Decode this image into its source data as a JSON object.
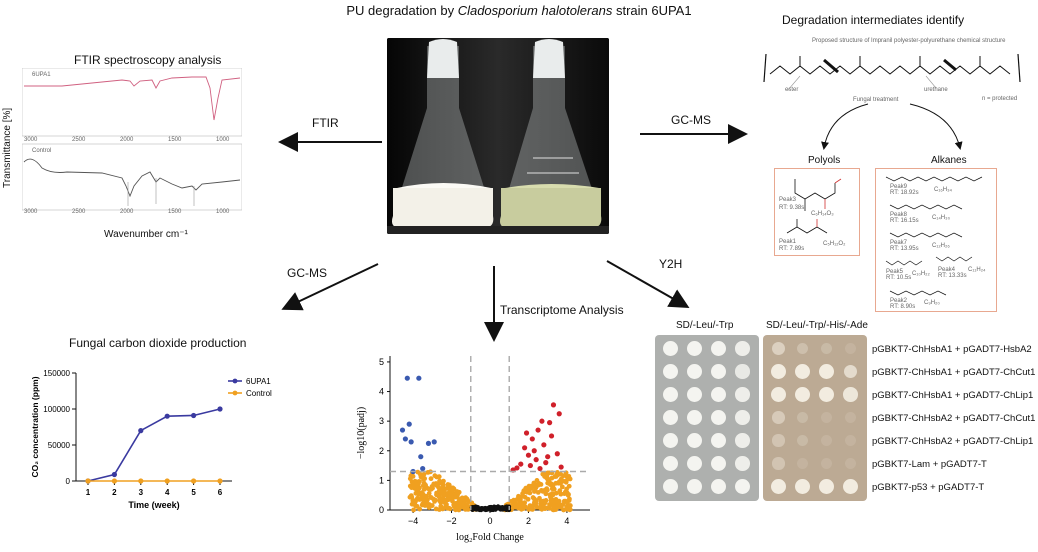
{
  "header": {
    "title_pre": "PU degradation by ",
    "title_species": "Cladosporium halotolerans",
    "title_post": " strain 6UPA1"
  },
  "methods": {
    "ftir": "FTIR",
    "gcms_right": "GC-MS",
    "gcms_left": "GC-MS",
    "transcriptome": "Transcriptome Analysis",
    "y2h": "Y2H"
  },
  "ftir_panel": {
    "title": "FTIR spectroscopy analysis",
    "ylabel": "Transmittance [%]",
    "xlabel": "Wavenumber cm⁻¹",
    "top_label": "6UPA1",
    "bottom_label": "Control",
    "xticks": [
      "3000",
      "2500",
      "2000",
      "1500",
      "1000"
    ]
  },
  "gc_ms_panel": {
    "title": "Degradation intermediates identify",
    "structure_caption": "Proposed structure of Impranil polyester-polyurethane chemical structure",
    "ester": "ester",
    "urethane": "urethane",
    "fungal": "Fungal treatment",
    "protected": "n = protected",
    "polyols_label": "Polyols",
    "alkanes_label": "Alkanes",
    "polyols": [
      {
        "peak": "Peak3",
        "rt": "RT: 9.38s",
        "formula": "C₆H₁₄O₃"
      },
      {
        "peak": "Peak1",
        "rt": "RT: 7.89s",
        "formula": "C₅H₁₂O₂"
      }
    ],
    "alkanes": [
      {
        "peak": "Peak9",
        "rt": "RT: 18.92s",
        "formula": "C₁₆H₃₄"
      },
      {
        "peak": "Peak8",
        "rt": "RT: 16.15s",
        "formula": "C₁₄H₃₀"
      },
      {
        "peak": "Peak7",
        "rt": "RT: 13.95s",
        "formula": "C₁₂H₂₆"
      },
      {
        "peak": "Peak5",
        "rt": "RT: 10.5s",
        "formula": "C₁₀H₂₂"
      },
      {
        "peak": "Peak4",
        "rt": "RT: 13.33s",
        "formula": "C₁₁H₂₄"
      },
      {
        "peak": "Peak2",
        "rt": "RT: 8.90s",
        "formula": "C₉H₂₀"
      }
    ]
  },
  "co2_panel": {
    "title": "Fungal carbon dioxide production"
  },
  "y2h_panel": {
    "col1": "SD/-Leu/-Trp",
    "col2": "SD/-Leu/-Trp/-His/-Ade",
    "rows": [
      "pGBKT7-ChHsbA1 + pGADT7-HsbA2",
      "pGBKT7-ChHsbA1 + pGADT7-ChCut1",
      "pGBKT7-ChHsbA1 + pGADT7-ChLip1",
      "pGBKT7-ChHsbA2 + pGADT7-ChCut1",
      "pGBKT7-ChHsbA2 + pGADT7-ChLip1",
      "pGBKT7-Lam + pGADT7-T",
      "pGBKT7-p53 + pGADT7-T"
    ],
    "growth": [
      [
        1,
        1,
        1,
        0.9,
        0.7
      ],
      [
        1,
        1,
        1,
        0.8,
        0.4
      ],
      [
        1,
        1,
        1,
        0.9,
        0.6
      ],
      [
        1,
        1,
        1,
        0.9,
        0.7
      ],
      [
        1,
        1,
        1,
        0.9,
        0.6
      ],
      [
        1,
        1,
        1,
        0.9,
        0.8
      ],
      [
        1,
        1,
        1,
        1,
        1
      ]
    ],
    "growth_sel": [
      [
        0.5,
        0.2,
        0.1,
        0,
        0
      ],
      [
        1,
        1,
        1,
        0.7,
        0.5
      ],
      [
        1,
        1,
        1,
        0.9,
        0
      ],
      [
        0.4,
        0.1,
        0,
        0,
        0
      ],
      [
        0.3,
        0.1,
        0,
        0,
        0
      ],
      [
        0.3,
        0,
        0,
        0,
        0
      ],
      [
        1,
        1,
        1,
        1,
        0
      ]
    ]
  },
  "colors": {
    "orange": "#f0a020",
    "blue_series": "#3a3aa0",
    "red": "#d0202a",
    "blue_points": "#3a5ab0",
    "box_border": "#e8a890"
  },
  "chart_data": [
    {
      "type": "line",
      "title": "",
      "xlabel": "Time (week)",
      "ylabel": "CO₂ concentration (ppm)",
      "x": [
        1,
        2,
        3,
        4,
        5,
        6
      ],
      "xticks": [
        "1",
        "2",
        "3",
        "4",
        "5",
        "6"
      ],
      "yticks": [
        "0",
        "50000",
        "100000",
        "150000"
      ],
      "ylim": [
        0,
        150000
      ],
      "legend": "top-right",
      "series": [
        {
          "name": "6UPA1",
          "color": "#3a3aa0",
          "values": [
            0,
            9000,
            70000,
            90000,
            91000,
            100000
          ]
        },
        {
          "name": "Control",
          "color": "#f0a020",
          "values": [
            0,
            0,
            0,
            0,
            0,
            0
          ]
        }
      ]
    },
    {
      "type": "scatter",
      "title": "",
      "xlabel": "log₂Fold Change",
      "ylabel": "−log10(padj)",
      "xticks": [
        "−4",
        "−2",
        "0",
        "2",
        "4"
      ],
      "xtick_values": [
        -4,
        -2,
        0,
        2,
        4
      ],
      "yticks": [
        "0",
        "1",
        "2",
        "3",
        "4",
        "5"
      ],
      "xlim": [
        -5.2,
        5.2
      ],
      "ylim": [
        0,
        5.2
      ],
      "thresholds": {
        "x": [
          -1,
          1
        ],
        "y": 1.3
      },
      "down": [
        [
          -4.3,
          4.45
        ],
        [
          -3.7,
          4.45
        ],
        [
          -4.55,
          2.7
        ],
        [
          -4.4,
          2.4
        ],
        [
          -4.1,
          2.3
        ],
        [
          -3.2,
          2.25
        ],
        [
          -2.9,
          2.3
        ],
        [
          -3.5,
          1.4
        ],
        [
          -4.0,
          1.3
        ],
        [
          -4.2,
          2.9
        ],
        [
          -3.6,
          1.8
        ]
      ],
      "up": [
        [
          3.3,
          3.55
        ],
        [
          3.6,
          3.25
        ],
        [
          3.1,
          2.95
        ],
        [
          2.5,
          2.7
        ],
        [
          2.2,
          2.4
        ],
        [
          2.8,
          2.2
        ],
        [
          3.2,
          2.5
        ],
        [
          2.0,
          1.85
        ],
        [
          2.4,
          1.7
        ],
        [
          1.6,
          1.55
        ],
        [
          2.1,
          1.5
        ],
        [
          1.4,
          1.42
        ],
        [
          2.9,
          1.6
        ],
        [
          3.5,
          1.9
        ],
        [
          1.8,
          2.1
        ],
        [
          2.6,
          1.4
        ],
        [
          1.2,
          1.35
        ],
        [
          3.7,
          1.45
        ],
        [
          2.3,
          2.0
        ],
        [
          1.9,
          2.6
        ],
        [
          3.0,
          1.8
        ],
        [
          2.7,
          3.0
        ]
      ]
    }
  ]
}
